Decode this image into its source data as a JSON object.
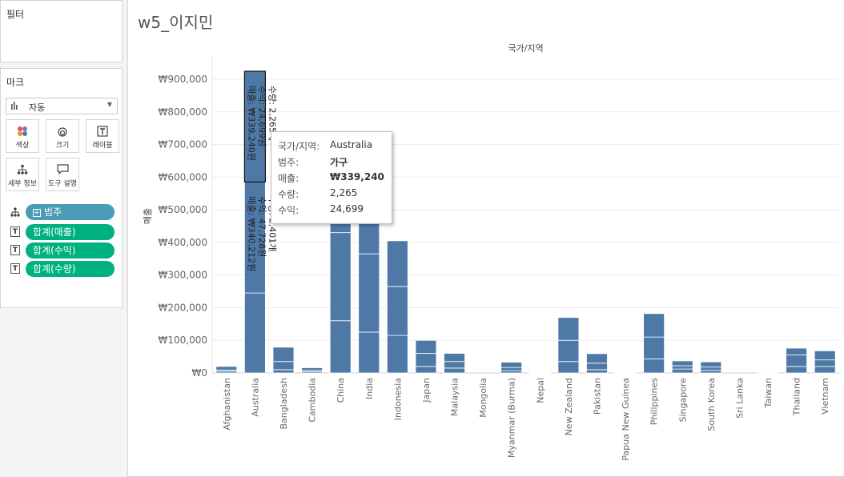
{
  "sidebar": {
    "filters_title": "필터",
    "marks_title": "마크",
    "mark_type": "자동",
    "buttons": [
      "색상",
      "크기",
      "레이블",
      "세부 정보",
      "도구 설명"
    ],
    "pills": [
      {
        "label": "범주",
        "kind": "dimension",
        "icon": "detail-icon"
      },
      {
        "label": "합계(매출)",
        "kind": "measure",
        "icon": "label-icon"
      },
      {
        "label": "합계(수익)",
        "kind": "measure",
        "icon": "label-icon"
      },
      {
        "label": "합계(수량)",
        "kind": "measure",
        "icon": "label-icon"
      }
    ]
  },
  "sheet": {
    "title": "w5_이지민"
  },
  "tooltip": {
    "rows": [
      {
        "key": "국가/지역:",
        "value": "Australia"
      },
      {
        "key": "범주:",
        "value": "가구"
      },
      {
        "key": "매출:",
        "value": "₩339,240"
      },
      {
        "key": "수량:",
        "value": "2,265"
      },
      {
        "key": "수익:",
        "value": "24,699"
      }
    ]
  },
  "chart_data": {
    "type": "bar",
    "stacked": true,
    "title": "국가/지역",
    "ylabel": "매출",
    "ylim": [
      0,
      900000
    ],
    "yticks": [
      "₩0",
      "₩100,000",
      "₩200,000",
      "₩300,000",
      "₩400,000",
      "₩500,000",
      "₩600,000",
      "₩700,000",
      "₩800,000",
      "₩900,000"
    ],
    "categories": [
      "Afghanistan",
      "Australia",
      "Bangladesh",
      "Cambodia",
      "China",
      "India",
      "Indonesia",
      "Japan",
      "Malaysia",
      "Mongolia",
      "Myanmar (Burma)",
      "Nepal",
      "New Zealand",
      "Pakistan",
      "Papua New Guinea",
      "Philippines",
      "Singapore",
      "South Korea",
      "Sri Lanka",
      "Taiwan",
      "Thailand",
      "Vietnam"
    ],
    "stacks": [
      [
        5000,
        4000,
        11000
      ],
      [
        245000,
        340212,
        339240
      ],
      [
        10000,
        25000,
        44000
      ],
      [
        4000,
        4000,
        8000
      ],
      [
        160000,
        270000,
        270000
      ],
      [
        125000,
        240000,
        262000
      ],
      [
        115000,
        150000,
        140000
      ],
      [
        20000,
        40000,
        40000
      ],
      [
        15000,
        20000,
        25000
      ],
      [
        0,
        0,
        0
      ],
      [
        7000,
        10000,
        16000
      ],
      [
        1000,
        1000,
        1000
      ],
      [
        35000,
        65000,
        70000
      ],
      [
        10000,
        20000,
        29000
      ],
      [
        1000,
        1000,
        1000
      ],
      [
        43000,
        67000,
        72000
      ],
      [
        12000,
        10000,
        15000
      ],
      [
        8000,
        10000,
        16000
      ],
      [
        0,
        0,
        0
      ],
      [
        2000,
        2000,
        2000
      ],
      [
        20000,
        35000,
        21000
      ],
      [
        20000,
        20000,
        28000
      ]
    ],
    "labels": [
      {
        "category": "Australia",
        "lines": [
          "매출: ₩339,240원",
          "수익: 24,699원",
          "수량: 2,265개"
        ]
      },
      {
        "category": "Australia",
        "lines": [
          "매출: ₩340,212원",
          "수익: 47,728원",
          "수량: 2,401개"
        ]
      }
    ],
    "colors": {
      "bar": "#4e79a7",
      "grid": "#ececec",
      "text": "#666666",
      "selected_stroke": "#111111"
    }
  }
}
